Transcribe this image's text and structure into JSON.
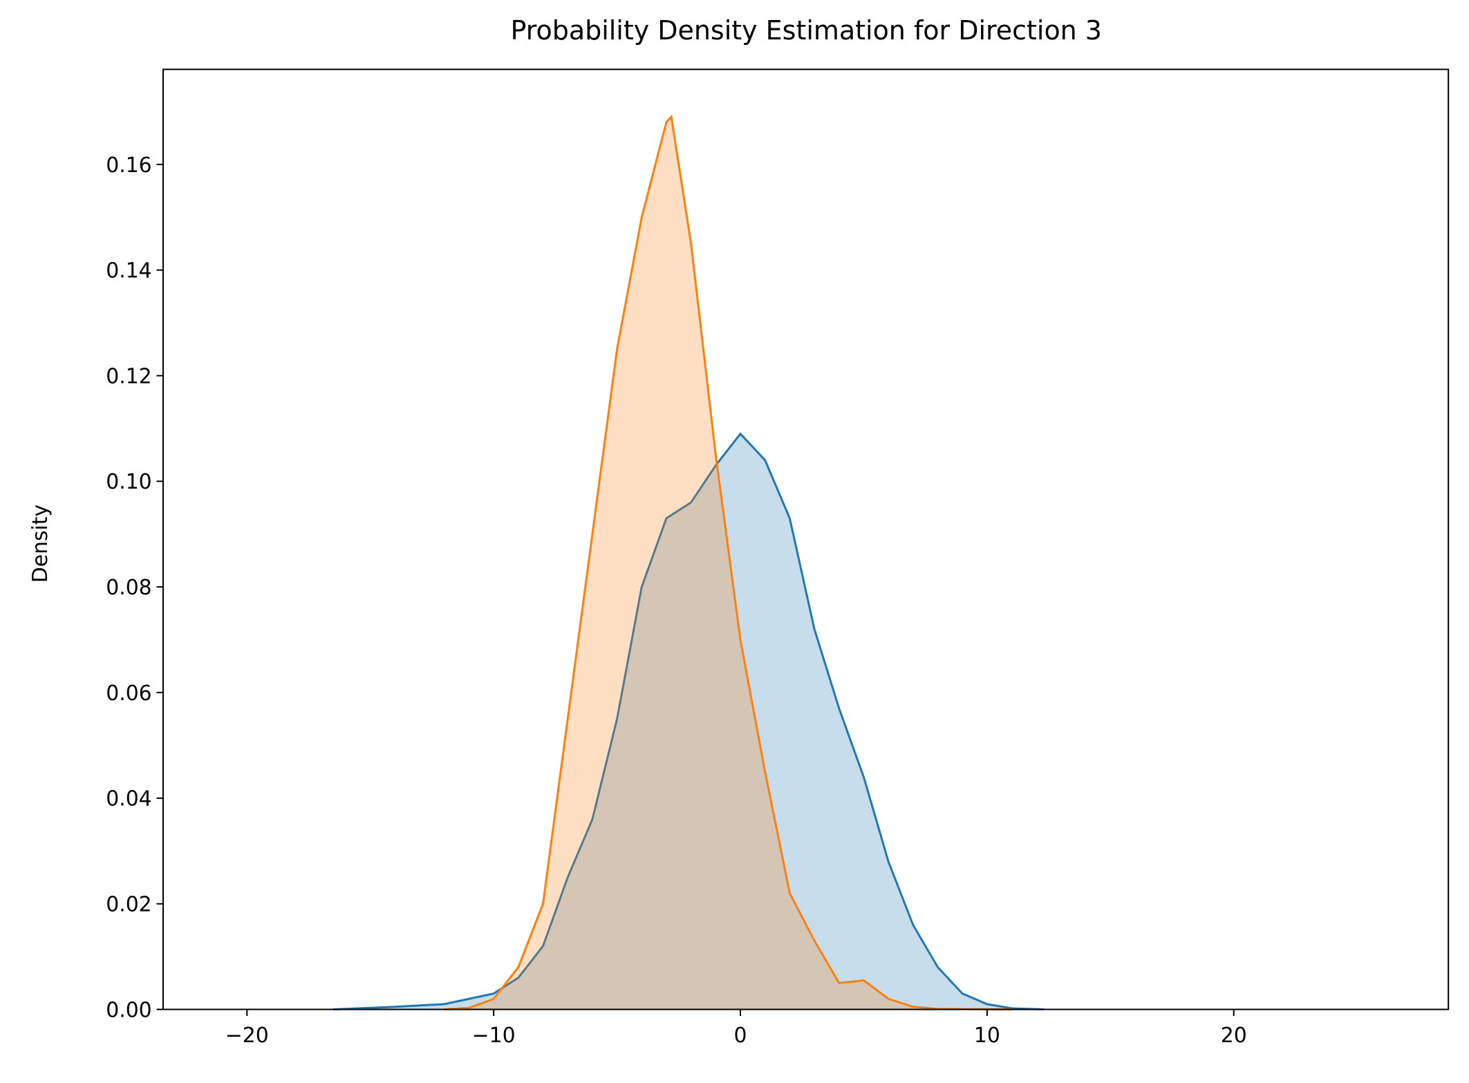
{
  "chart_data": {
    "type": "kde",
    "title": "Probability Density Estimation for Direction 3",
    "y_label": "Density",
    "xlim": [
      -23.4,
      28.7
    ],
    "ylim": [
      0,
      0.178
    ],
    "xticks": [
      {
        "value": -20,
        "label": "−20"
      },
      {
        "value": -10,
        "label": "−10"
      },
      0,
      10,
      20
    ],
    "yticks": [
      {
        "value": 0,
        "label": "0.00"
      },
      {
        "value": 0.02,
        "label": "0.02"
      },
      {
        "value": 0.04,
        "label": "0.04"
      },
      {
        "value": 0.06,
        "label": "0.06"
      },
      {
        "value": 0.08,
        "label": "0.08"
      },
      {
        "value": 0.1,
        "label": "0.10"
      },
      {
        "value": 0.12,
        "label": "0.12"
      },
      {
        "value": 0.14,
        "label": "0.14"
      },
      {
        "value": 0.16,
        "label": "0.16"
      }
    ],
    "fill_opacity": 0.25,
    "series": [
      {
        "color": "#1f77b4",
        "x": [
          -16.5,
          -14,
          -12,
          -11,
          -10,
          -9,
          -8,
          -7,
          -6,
          -5,
          -4,
          -3,
          -2,
          -1,
          0,
          1,
          2,
          3,
          4,
          5,
          6,
          7,
          8,
          9,
          10,
          11,
          12.3
        ],
        "values": [
          0,
          0.0005,
          0.001,
          0.002,
          0.003,
          0.006,
          0.012,
          0.025,
          0.036,
          0.055,
          0.08,
          0.093,
          0.096,
          0.103,
          0.109,
          0.104,
          0.093,
          0.072,
          0.057,
          0.044,
          0.028,
          0.016,
          0.008,
          0.003,
          0.001,
          0.0002,
          0
        ]
      },
      {
        "color": "#ff7f0e",
        "x": [
          -12,
          -11,
          -10,
          -9,
          -8,
          -7,
          -6,
          -5,
          -4,
          -3,
          -2.8,
          -2,
          -1,
          0,
          1,
          2,
          3,
          4,
          5,
          6,
          7,
          8,
          11
        ],
        "values": [
          0,
          0.0003,
          0.002,
          0.008,
          0.02,
          0.055,
          0.09,
          0.125,
          0.15,
          0.168,
          0.169,
          0.145,
          0.105,
          0.07,
          0.045,
          0.022,
          0.013,
          0.005,
          0.0055,
          0.002,
          0.0005,
          0.0001,
          0
        ]
      }
    ]
  }
}
